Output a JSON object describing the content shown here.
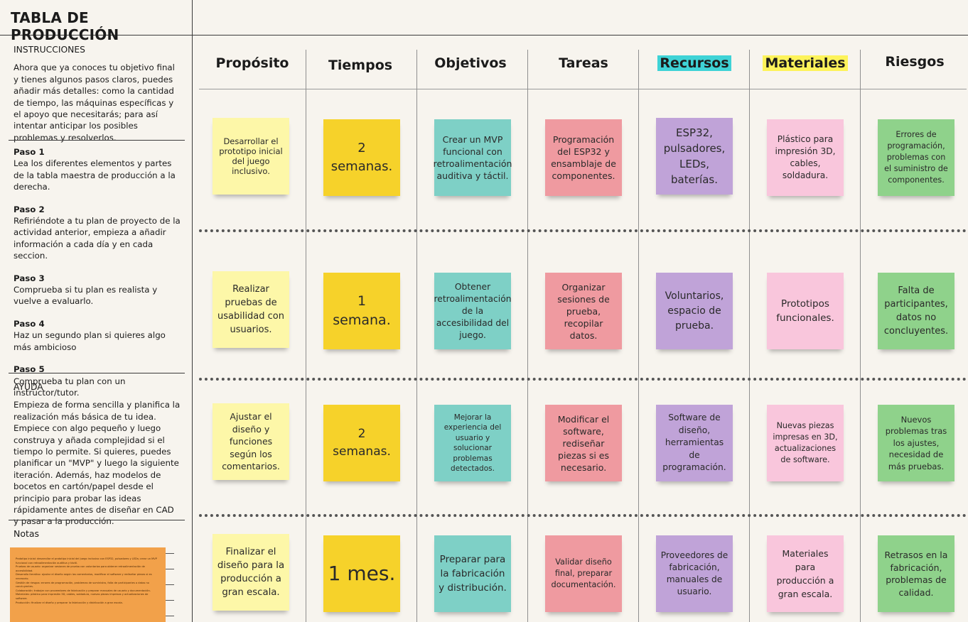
{
  "sidebar": {
    "title": "TABLA DE PRODUCCIÓN",
    "instructions_heading": "INSTRUCCIONES",
    "instructions_text": "Ahora que ya conoces tu objetivo final y tienes algunos pasos claros, puedes añadir más detalles: como la cantidad de tiempo, las máquinas específicas y el apoyo que necesitarás; para así intentar anticipar los posibles problemas y resolverlos.",
    "steps": [
      {
        "label": "Paso 1",
        "text": "Lea los diferentes elementos y partes de la tabla maestra de producción a la derecha."
      },
      {
        "label": "Paso 2",
        "text": "Refiriéndote a tu plan de proyecto de la actividad anterior, empieza a añadir información a cada día y en cada seccion."
      },
      {
        "label": "Paso 3",
        "text": "Comprueba si tu plan es realista y vuelve a evaluarlo."
      },
      {
        "label": "Paso 4",
        "text": "Haz un segundo plan si quieres algo más ambicioso"
      },
      {
        "label": "Paso 5",
        "text": "Comprueba tu plan con un instructor/tutor."
      }
    ],
    "help_heading": "AYUDA",
    "help_text": "Empieza de forma sencilla y planifica la realización más básica de tu idea. Empiece con algo pequeño y luego construya y añada complejidad si el tiempo lo permite. Si quieres, puedes planificar un \"MVP\" y luego la siguiente iteración. Además, haz modelos de bocetos en cartón/papel desde el principio para probar las ideas rápidamente antes de diseñar en CAD y pasar a la producción.",
    "notes_heading": "Notas"
  },
  "board": {
    "columns": [
      "Propósito",
      "Tiempos",
      "Objetivos",
      "Tareas",
      "Recursos",
      "Materiales",
      "Riesgos"
    ],
    "rows": [
      [
        "Desarrollar el prototipo inicial del juego inclusivo.",
        "2 semanas.",
        "Crear un MVP funcional con retroalimentación auditiva y táctil.",
        "Programación del ESP32 y ensamblaje de componentes.",
        "ESP32, pulsadores, LEDs, baterías.",
        "Plástico para impresión 3D, cables, soldadura.",
        "Errores de programación, problemas con el suministro de componentes."
      ],
      [
        "Realizar pruebas de usabilidad con usuarios.",
        "1 semana.",
        "Obtener retroalimentación de la accesibilidad del juego.",
        "Organizar sesiones de prueba, recopilar datos.",
        "Voluntarios, espacio de prueba.",
        "Prototipos funcionales.",
        "Falta de participantes, datos no concluyentes."
      ],
      [
        "Ajustar el diseño y funciones según los comentarios.",
        "2 semanas.",
        "Mejorar la experiencia del usuario y solucionar problemas detectados.",
        "Modificar el software, rediseñar piezas si es necesario.",
        "Software de diseño, herramientas de programación.",
        "Nuevas piezas impresas en 3D, actualizaciones de software.",
        "Nuevos problemas tras los ajustes, necesidad de más pruebas."
      ],
      [
        "Finalizar el diseño para la producción a gran escala.",
        "1 mes.",
        "Preparar para la fabricación y distribución.",
        "Validar diseño final, preparar documentación.",
        "Proveedores de fabricación, manuales de usuario.",
        "Materiales para producción a gran escala.",
        "Retrasos en la fabricación, problemas de calidad."
      ]
    ]
  },
  "notes_sticky_lines": [
    "Prototipo inicial: desarrollar el prototipo inicial del juego inclusivo con ESP32, pulsadores y LEDs; crear un MVP funcional con retroalimentación auditiva y táctil.",
    "Pruebas de usuario: organizar sesiones de prueba con voluntarios para obtener retroalimentación de accesibilidad.",
    "Desarrollo iterativo: ajustar el diseño según los comentarios, modificar el software y rediseñar piezas si es necesario.",
    "Gestión de riesgos: errores de programación, problemas de suministro, falta de participantes o datos no concluyentes.",
    "Colaboración: trabajar con proveedores de fabricación y preparar manuales de usuario y documentación.",
    "Materiales: plástico para impresión 3D, cables, soldadura, nuevas piezas impresas y actualizaciones de software.",
    "Producción: finalizar el diseño y preparar la fabricación y distribución a gran escala."
  ]
}
